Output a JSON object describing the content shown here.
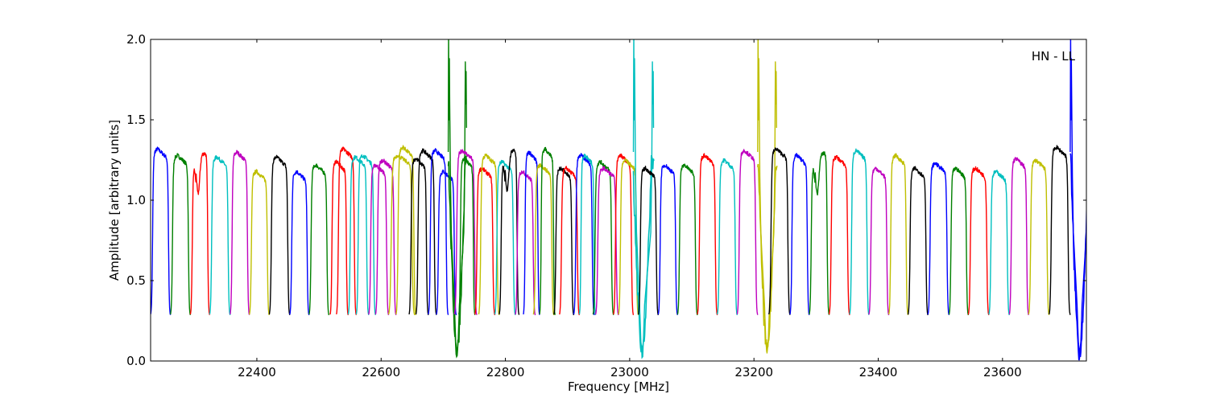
{
  "chart_data": {
    "type": "line",
    "title": "",
    "xlabel": "Frequency [MHz]",
    "ylabel": "Amplitude [arbitrary units]",
    "annotation": "HN - LL",
    "xlim": [
      22229,
      23735
    ],
    "ylim": [
      0.0,
      2.0
    ],
    "xticks": [
      22400,
      22600,
      22800,
      23000,
      23200,
      23400,
      23600
    ],
    "xtick_labels": [
      "22400",
      "22600",
      "22800",
      "23000",
      "23200",
      "23400",
      "23600"
    ],
    "yticks": [
      0.0,
      0.5,
      1.0,
      1.5,
      2.0
    ],
    "ytick_labels": [
      "0.0",
      "0.5",
      "1.0",
      "1.5",
      "2.0"
    ],
    "grid": false,
    "colors": {
      "b": "#0000ff",
      "g": "#008000",
      "r": "#ff0000",
      "c": "#00bfbf",
      "m": "#bf00bf",
      "y": "#bfbf00",
      "k": "#000000"
    },
    "windows_note_fields": [
      "start_MHz",
      "end_MHz",
      "peak_amplitude",
      "color"
    ],
    "windows": [
      {
        "start": 22229,
        "end": 22261,
        "peak": 1.32,
        "color": "b"
      },
      {
        "start": 22261,
        "end": 22293,
        "peak": 1.28,
        "color": "g"
      },
      {
        "start": 22293,
        "end": 22324,
        "peak": 1.29,
        "color": "r",
        "dip": true
      },
      {
        "start": 22324,
        "end": 22357,
        "peak": 1.27,
        "color": "c"
      },
      {
        "start": 22357,
        "end": 22388,
        "peak": 1.3,
        "color": "m"
      },
      {
        "start": 22388,
        "end": 22420,
        "peak": 1.18,
        "color": "y"
      },
      {
        "start": 22420,
        "end": 22453,
        "peak": 1.27,
        "color": "k"
      },
      {
        "start": 22453,
        "end": 22484,
        "peak": 1.18,
        "color": "b"
      },
      {
        "start": 22484,
        "end": 22516,
        "peak": 1.22,
        "color": "g"
      },
      {
        "start": 22518,
        "end": 22547,
        "peak": 1.24,
        "color": "r"
      },
      {
        "start": 22528,
        "end": 22560,
        "peak": 1.32,
        "color": "r"
      },
      {
        "start": 22547,
        "end": 22580,
        "peak": 1.27,
        "color": "c"
      },
      {
        "start": 22560,
        "end": 22591,
        "peak": 1.28,
        "color": "c"
      },
      {
        "start": 22580,
        "end": 22612,
        "peak": 1.22,
        "color": "m"
      },
      {
        "start": 22591,
        "end": 22624,
        "peak": 1.25,
        "color": "m"
      },
      {
        "start": 22612,
        "end": 22654,
        "peak": 1.28,
        "color": "y"
      },
      {
        "start": 22624,
        "end": 22656,
        "peak": 1.33,
        "color": "y"
      },
      {
        "start": 22645,
        "end": 22676,
        "peak": 1.26,
        "color": "k"
      },
      {
        "start": 22656,
        "end": 22689,
        "peak": 1.31,
        "color": "k"
      },
      {
        "start": 22676,
        "end": 22708,
        "peak": 1.31,
        "color": "b"
      },
      {
        "start": 22689,
        "end": 22721,
        "peak": 1.18,
        "color": "b"
      },
      {
        "start": 22708,
        "end": 22738,
        "color": "g",
        "line_center": 22722,
        "line_min": 0.05
      },
      {
        "start": 22718,
        "end": 22754,
        "peak": 1.31,
        "color": "m"
      },
      {
        "start": 22725,
        "end": 22751,
        "peak": 1.26,
        "color": "g"
      },
      {
        "start": 22751,
        "end": 22783,
        "peak": 1.2,
        "color": "r"
      },
      {
        "start": 22757,
        "end": 22790,
        "peak": 1.28,
        "color": "y"
      },
      {
        "start": 22783,
        "end": 22816,
        "peak": 1.24,
        "color": "c"
      },
      {
        "start": 22790,
        "end": 22822,
        "peak": 1.31,
        "color": "k",
        "dip": true
      },
      {
        "start": 22816,
        "end": 22848,
        "peak": 1.18,
        "color": "m"
      },
      {
        "start": 22829,
        "end": 22855,
        "peak": 1.3,
        "color": "b"
      },
      {
        "start": 22845,
        "end": 22878,
        "peak": 1.22,
        "color": "y"
      },
      {
        "start": 22855,
        "end": 22880,
        "peak": 1.32,
        "color": "g"
      },
      {
        "start": 22878,
        "end": 22910,
        "peak": 1.2,
        "color": "k"
      },
      {
        "start": 22887,
        "end": 22919,
        "peak": 1.2,
        "color": "r"
      },
      {
        "start": 22910,
        "end": 22943,
        "peak": 1.28,
        "color": "b"
      },
      {
        "start": 22919,
        "end": 22945,
        "peak": 1.28,
        "color": "c"
      },
      {
        "start": 22941,
        "end": 22974,
        "peak": 1.24,
        "color": "g"
      },
      {
        "start": 22945,
        "end": 22982,
        "peak": 1.2,
        "color": "m"
      },
      {
        "start": 22974,
        "end": 23006,
        "peak": 1.28,
        "color": "r"
      },
      {
        "start": 22982,
        "end": 23014,
        "peak": 1.25,
        "color": "y"
      },
      {
        "start": 23006,
        "end": 23039,
        "color": "c",
        "line_center": 23020,
        "line_min": 0.05
      },
      {
        "start": 23014,
        "end": 23046,
        "peak": 1.2,
        "color": "k"
      },
      {
        "start": 23046,
        "end": 23077,
        "peak": 1.22,
        "color": "b"
      },
      {
        "start": 23077,
        "end": 23109,
        "peak": 1.22,
        "color": "g"
      },
      {
        "start": 23109,
        "end": 23141,
        "peak": 1.28,
        "color": "r"
      },
      {
        "start": 23141,
        "end": 23173,
        "peak": 1.25,
        "color": "c"
      },
      {
        "start": 23173,
        "end": 23206,
        "peak": 1.31,
        "color": "m"
      },
      {
        "start": 23206,
        "end": 23237,
        "color": "y",
        "line_center": 23221,
        "line_min": 0.05
      },
      {
        "start": 23224,
        "end": 23258,
        "peak": 1.32,
        "color": "k"
      },
      {
        "start": 23258,
        "end": 23289,
        "peak": 1.28,
        "color": "b"
      },
      {
        "start": 23289,
        "end": 23321,
        "peak": 1.29,
        "color": "g",
        "dip": true
      },
      {
        "start": 23321,
        "end": 23354,
        "peak": 1.27,
        "color": "r"
      },
      {
        "start": 23354,
        "end": 23385,
        "peak": 1.31,
        "color": "c"
      },
      {
        "start": 23385,
        "end": 23417,
        "peak": 1.2,
        "color": "m"
      },
      {
        "start": 23417,
        "end": 23448,
        "peak": 1.28,
        "color": "y"
      },
      {
        "start": 23448,
        "end": 23480,
        "peak": 1.2,
        "color": "k"
      },
      {
        "start": 23480,
        "end": 23514,
        "peak": 1.23,
        "color": "b"
      },
      {
        "start": 23514,
        "end": 23545,
        "peak": 1.2,
        "color": "g"
      },
      {
        "start": 23545,
        "end": 23578,
        "peak": 1.2,
        "color": "r"
      },
      {
        "start": 23578,
        "end": 23611,
        "peak": 1.18,
        "color": "c"
      },
      {
        "start": 23611,
        "end": 23642,
        "peak": 1.26,
        "color": "m"
      },
      {
        "start": 23642,
        "end": 23675,
        "peak": 1.25,
        "color": "y"
      },
      {
        "start": 23675,
        "end": 23709,
        "peak": 1.33,
        "color": "k"
      },
      {
        "start": 23709,
        "end": 23740,
        "color": "b",
        "line_center": 23724,
        "line_min": 0.04
      }
    ]
  }
}
